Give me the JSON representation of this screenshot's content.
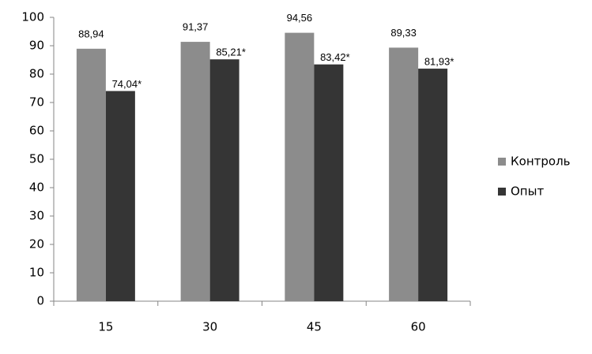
{
  "chart_data": {
    "type": "bar",
    "categories": [
      "15",
      "30",
      "45",
      "60"
    ],
    "series": [
      {
        "name": "Контроль",
        "color": "#8c8c8c",
        "values": [
          88.94,
          91.37,
          94.56,
          89.33
        ],
        "value_labels": [
          "88,94",
          "91,37",
          "94,56",
          "89,33"
        ]
      },
      {
        "name": "Опыт",
        "color": "#353535",
        "values": [
          74.04,
          85.21,
          83.42,
          81.93
        ],
        "value_labels": [
          "74,04*",
          "85,21*",
          "83,42*",
          "81,93*"
        ]
      }
    ],
    "ylim": [
      0,
      100
    ],
    "yticks": [
      0,
      10,
      20,
      30,
      40,
      50,
      60,
      70,
      80,
      90,
      100
    ],
    "grid": false,
    "legend": "right"
  }
}
